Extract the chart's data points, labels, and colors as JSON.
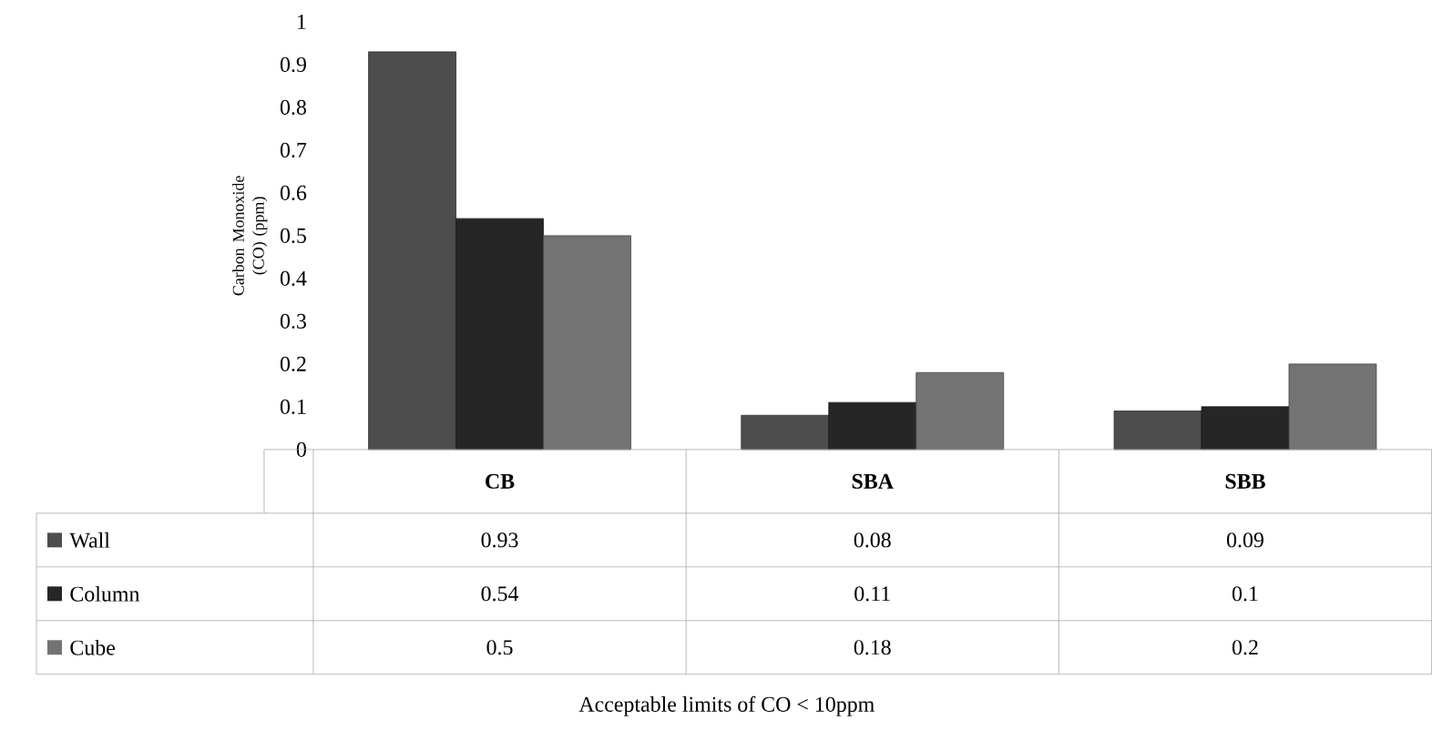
{
  "chart_data": {
    "type": "bar",
    "ylabel": "Carbon Monoxide (CO) (ppm)",
    "annotations": [
      "Acceptable limits  of CO < 10ppm"
    ],
    "categories": [
      "CB",
      "SBA",
      "SBB"
    ],
    "series": [
      {
        "name": "Wall",
        "color": "#4d4d4d",
        "values": [
          0.93,
          0.08,
          0.09
        ]
      },
      {
        "name": "Column",
        "color": "#262626",
        "values": [
          0.54,
          0.11,
          0.1
        ]
      },
      {
        "name": "Cube",
        "color": "#737373",
        "values": [
          0.5,
          0.18,
          0.2
        ]
      }
    ],
    "ylim": [
      0,
      1
    ],
    "yticks": [
      0,
      0.1,
      0.2,
      0.3,
      0.4,
      0.5,
      0.6,
      0.7,
      0.8,
      0.9,
      1
    ],
    "data_labels": true,
    "legend": "bottom left",
    "grid": false
  }
}
